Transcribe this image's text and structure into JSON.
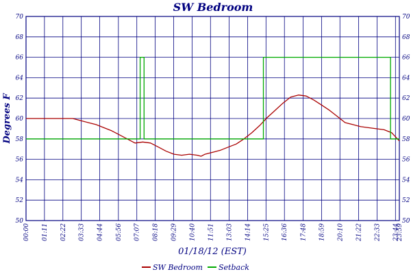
{
  "chart_data": {
    "type": "line",
    "title": "SW Bedroom",
    "xlabel": "01/18/12 (EST)",
    "ylabel": "Degrees F",
    "ylim": [
      50,
      70
    ],
    "xlim": [
      "00:00",
      "23:59"
    ],
    "y_ticks": [
      "50",
      "52",
      "54",
      "56",
      "58",
      "60",
      "62",
      "64",
      "66",
      "68",
      "70"
    ],
    "x_ticks": [
      "00:00",
      "01:11",
      "02:22",
      "03:33",
      "04:44",
      "05:56",
      "07:07",
      "08:18",
      "09:29",
      "10:40",
      "11:51",
      "13:03",
      "14:14",
      "15:25",
      "16:36",
      "17:48",
      "18:59",
      "20:10",
      "21:22",
      "22:33",
      "23:44",
      "23:59"
    ],
    "grid": true,
    "legend_position": "bottom-center",
    "series": [
      {
        "name": "SW Bedroom",
        "color": "#aa0000",
        "step": false,
        "points": [
          [
            "00:00",
            60.0
          ],
          [
            "01:00",
            60.0
          ],
          [
            "02:00",
            60.0
          ],
          [
            "03:00",
            60.0
          ],
          [
            "03:30",
            59.8
          ],
          [
            "04:00",
            59.6
          ],
          [
            "04:30",
            59.4
          ],
          [
            "05:00",
            59.1
          ],
          [
            "05:30",
            58.8
          ],
          [
            "06:00",
            58.4
          ],
          [
            "06:30",
            58.0
          ],
          [
            "07:00",
            57.6
          ],
          [
            "07:30",
            57.7
          ],
          [
            "08:00",
            57.6
          ],
          [
            "08:30",
            57.2
          ],
          [
            "09:00",
            56.8
          ],
          [
            "09:30",
            56.5
          ],
          [
            "10:00",
            56.4
          ],
          [
            "10:30",
            56.5
          ],
          [
            "11:00",
            56.4
          ],
          [
            "11:15",
            56.3
          ],
          [
            "11:30",
            56.5
          ],
          [
            "12:00",
            56.7
          ],
          [
            "12:30",
            56.9
          ],
          [
            "13:00",
            57.2
          ],
          [
            "13:30",
            57.5
          ],
          [
            "14:00",
            58.0
          ],
          [
            "14:30",
            58.6
          ],
          [
            "15:00",
            59.3
          ],
          [
            "15:30",
            60.1
          ],
          [
            "16:00",
            60.8
          ],
          [
            "16:30",
            61.5
          ],
          [
            "17:00",
            62.1
          ],
          [
            "17:30",
            62.3
          ],
          [
            "18:00",
            62.2
          ],
          [
            "18:30",
            61.8
          ],
          [
            "19:00",
            61.3
          ],
          [
            "19:30",
            60.8
          ],
          [
            "20:00",
            60.2
          ],
          [
            "20:30",
            59.6
          ],
          [
            "21:00",
            59.4
          ],
          [
            "21:30",
            59.2
          ],
          [
            "22:00",
            59.1
          ],
          [
            "22:30",
            59.0
          ],
          [
            "23:00",
            58.9
          ],
          [
            "23:30",
            58.6
          ],
          [
            "23:59",
            57.8
          ]
        ]
      },
      {
        "name": "Setback",
        "color": "#00aa00",
        "step": true,
        "points": [
          [
            "00:00",
            58
          ],
          [
            "07:20",
            58
          ],
          [
            "07:20",
            66
          ],
          [
            "07:35",
            66
          ],
          [
            "07:35",
            58
          ],
          [
            "15:15",
            58
          ],
          [
            "15:15",
            66
          ],
          [
            "23:25",
            66
          ],
          [
            "23:25",
            58
          ],
          [
            "23:59",
            58
          ]
        ]
      }
    ]
  }
}
